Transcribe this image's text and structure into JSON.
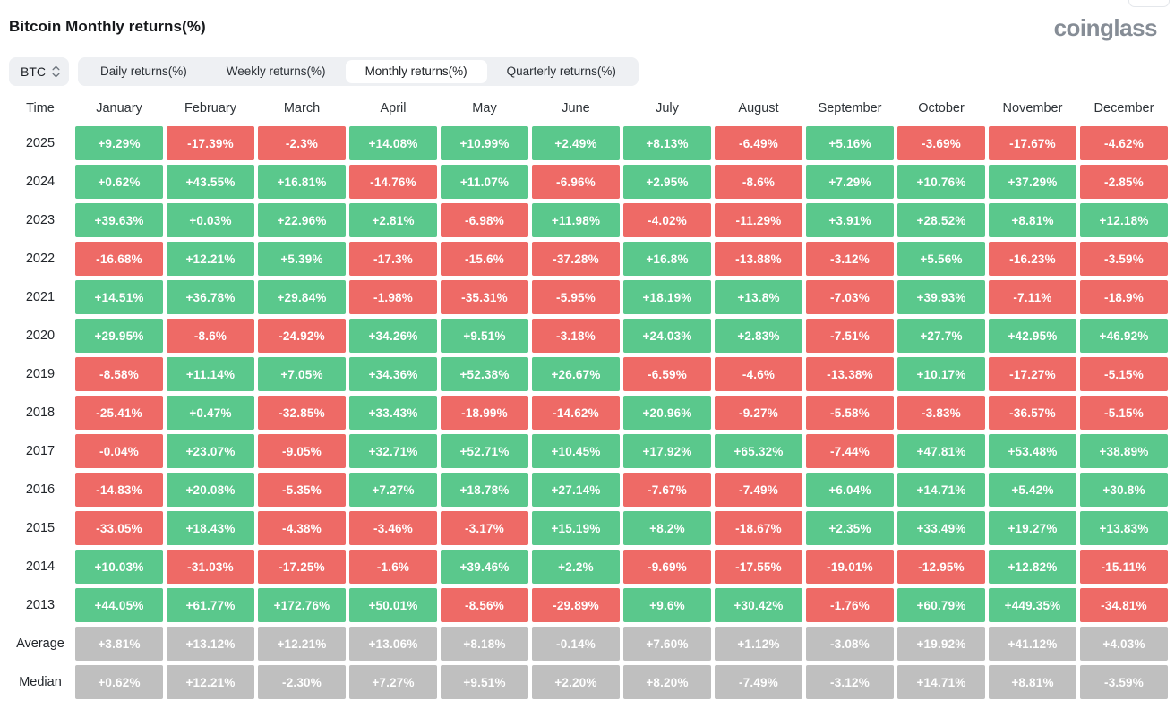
{
  "header": {
    "title": "Bitcoin Monthly returns(%)",
    "logo_text": "coinglass"
  },
  "controls": {
    "symbol_selector": {
      "value": "BTC"
    },
    "tabs": [
      {
        "label": "Daily returns(%)",
        "active": false
      },
      {
        "label": "Weekly returns(%)",
        "active": false
      },
      {
        "label": "Monthly returns(%)",
        "active": true
      },
      {
        "label": "Quarterly returns(%)",
        "active": false
      }
    ]
  },
  "colors": {
    "positive": "#5ac88c",
    "negative": "#ee6a66",
    "summary": "#bfbfbf"
  },
  "table": {
    "corner_label": "Time",
    "months": [
      "January",
      "February",
      "March",
      "April",
      "May",
      "June",
      "July",
      "August",
      "September",
      "October",
      "November",
      "December"
    ],
    "rows": [
      {
        "label": "2025",
        "type": "year",
        "values": [
          "+9.29%",
          "-17.39%",
          "-2.3%",
          "+14.08%",
          "+10.99%",
          "+2.49%",
          "+8.13%",
          "-6.49%",
          "+5.16%",
          "-3.69%",
          "-17.67%",
          "-4.62%"
        ]
      },
      {
        "label": "2024",
        "type": "year",
        "values": [
          "+0.62%",
          "+43.55%",
          "+16.81%",
          "-14.76%",
          "+11.07%",
          "-6.96%",
          "+2.95%",
          "-8.6%",
          "+7.29%",
          "+10.76%",
          "+37.29%",
          "-2.85%"
        ]
      },
      {
        "label": "2023",
        "type": "year",
        "values": [
          "+39.63%",
          "+0.03%",
          "+22.96%",
          "+2.81%",
          "-6.98%",
          "+11.98%",
          "-4.02%",
          "-11.29%",
          "+3.91%",
          "+28.52%",
          "+8.81%",
          "+12.18%"
        ]
      },
      {
        "label": "2022",
        "type": "year",
        "values": [
          "-16.68%",
          "+12.21%",
          "+5.39%",
          "-17.3%",
          "-15.6%",
          "-37.28%",
          "+16.8%",
          "-13.88%",
          "-3.12%",
          "+5.56%",
          "-16.23%",
          "-3.59%"
        ]
      },
      {
        "label": "2021",
        "type": "year",
        "values": [
          "+14.51%",
          "+36.78%",
          "+29.84%",
          "-1.98%",
          "-35.31%",
          "-5.95%",
          "+18.19%",
          "+13.8%",
          "-7.03%",
          "+39.93%",
          "-7.11%",
          "-18.9%"
        ]
      },
      {
        "label": "2020",
        "type": "year",
        "values": [
          "+29.95%",
          "-8.6%",
          "-24.92%",
          "+34.26%",
          "+9.51%",
          "-3.18%",
          "+24.03%",
          "+2.83%",
          "-7.51%",
          "+27.7%",
          "+42.95%",
          "+46.92%"
        ]
      },
      {
        "label": "2019",
        "type": "year",
        "values": [
          "-8.58%",
          "+11.14%",
          "+7.05%",
          "+34.36%",
          "+52.38%",
          "+26.67%",
          "-6.59%",
          "-4.6%",
          "-13.38%",
          "+10.17%",
          "-17.27%",
          "-5.15%"
        ]
      },
      {
        "label": "2018",
        "type": "year",
        "values": [
          "-25.41%",
          "+0.47%",
          "-32.85%",
          "+33.43%",
          "-18.99%",
          "-14.62%",
          "+20.96%",
          "-9.27%",
          "-5.58%",
          "-3.83%",
          "-36.57%",
          "-5.15%"
        ]
      },
      {
        "label": "2017",
        "type": "year",
        "values": [
          "-0.04%",
          "+23.07%",
          "-9.05%",
          "+32.71%",
          "+52.71%",
          "+10.45%",
          "+17.92%",
          "+65.32%",
          "-7.44%",
          "+47.81%",
          "+53.48%",
          "+38.89%"
        ]
      },
      {
        "label": "2016",
        "type": "year",
        "values": [
          "-14.83%",
          "+20.08%",
          "-5.35%",
          "+7.27%",
          "+18.78%",
          "+27.14%",
          "-7.67%",
          "-7.49%",
          "+6.04%",
          "+14.71%",
          "+5.42%",
          "+30.8%"
        ]
      },
      {
        "label": "2015",
        "type": "year",
        "values": [
          "-33.05%",
          "+18.43%",
          "-4.38%",
          "-3.46%",
          "-3.17%",
          "+15.19%",
          "+8.2%",
          "-18.67%",
          "+2.35%",
          "+33.49%",
          "+19.27%",
          "+13.83%"
        ]
      },
      {
        "label": "2014",
        "type": "year",
        "values": [
          "+10.03%",
          "-31.03%",
          "-17.25%",
          "-1.6%",
          "+39.46%",
          "+2.2%",
          "-9.69%",
          "-17.55%",
          "-19.01%",
          "-12.95%",
          "+12.82%",
          "-15.11%"
        ]
      },
      {
        "label": "2013",
        "type": "year",
        "values": [
          "+44.05%",
          "+61.77%",
          "+172.76%",
          "+50.01%",
          "-8.56%",
          "-29.89%",
          "+9.6%",
          "+30.42%",
          "-1.76%",
          "+60.79%",
          "+449.35%",
          "-34.81%"
        ]
      },
      {
        "label": "Average",
        "type": "summary",
        "values": [
          "+3.81%",
          "+13.12%",
          "+12.21%",
          "+13.06%",
          "+8.18%",
          "-0.14%",
          "+7.60%",
          "+1.12%",
          "-3.08%",
          "+19.92%",
          "+41.12%",
          "+4.03%"
        ]
      },
      {
        "label": "Median",
        "type": "summary",
        "values": [
          "+0.62%",
          "+12.21%",
          "-2.30%",
          "+7.27%",
          "+9.51%",
          "+2.20%",
          "+8.20%",
          "-7.49%",
          "-3.12%",
          "+14.71%",
          "+8.81%",
          "-3.59%"
        ]
      }
    ]
  }
}
